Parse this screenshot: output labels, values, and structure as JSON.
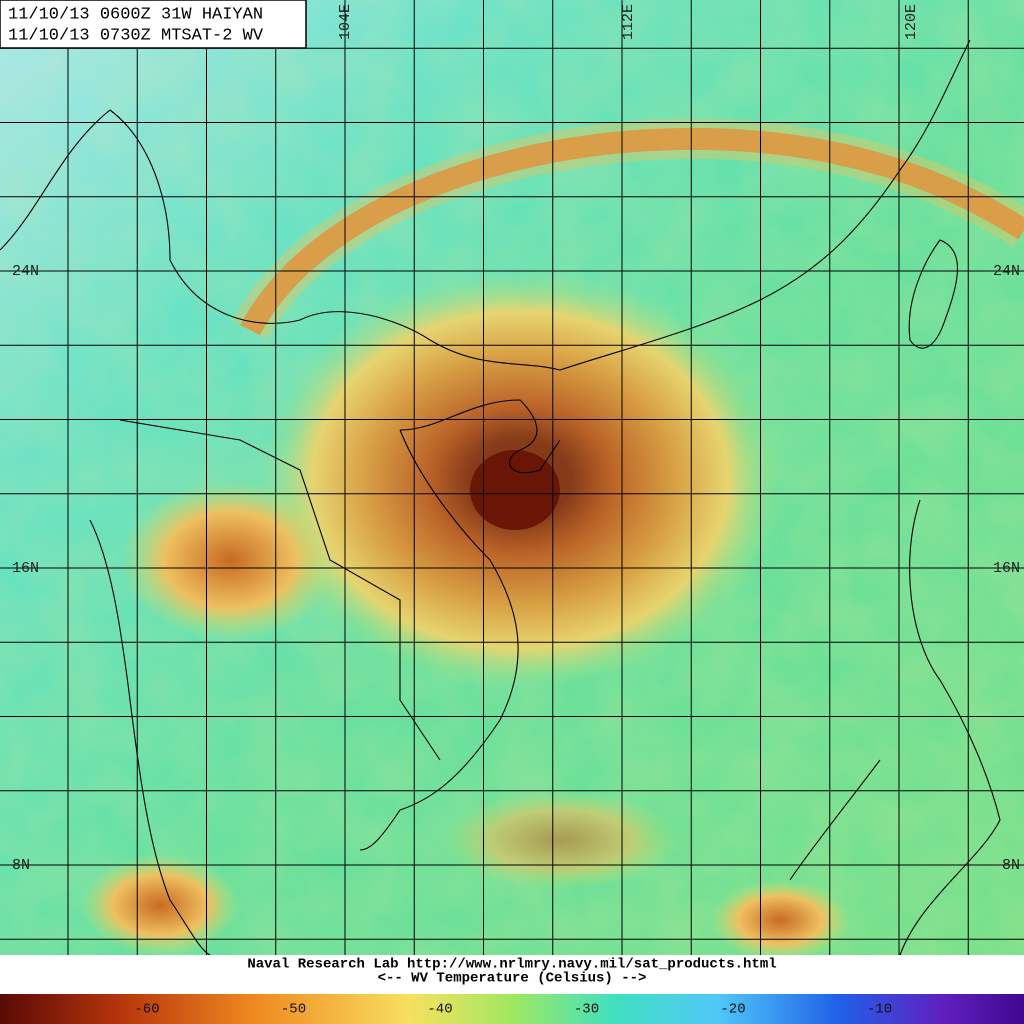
{
  "header": {
    "line1": "11/10/13 0600Z  31W HAIYAN",
    "line2": "11/10/13 0730Z  MTSAT-2 WV"
  },
  "lon_labels": [
    "104E",
    "112E",
    "120E"
  ],
  "lat_labels": [
    "24N",
    "16N",
    "8N"
  ],
  "footer": {
    "credit": "Naval Research Lab http://www.nrlmry.navy.mil/sat_products.html",
    "legend": "<--   WV Temperature (Celsius)   -->"
  },
  "colorbar": {
    "labels": [
      "-60",
      "-50",
      "-40",
      "-30",
      "-20",
      "-10"
    ]
  }
}
